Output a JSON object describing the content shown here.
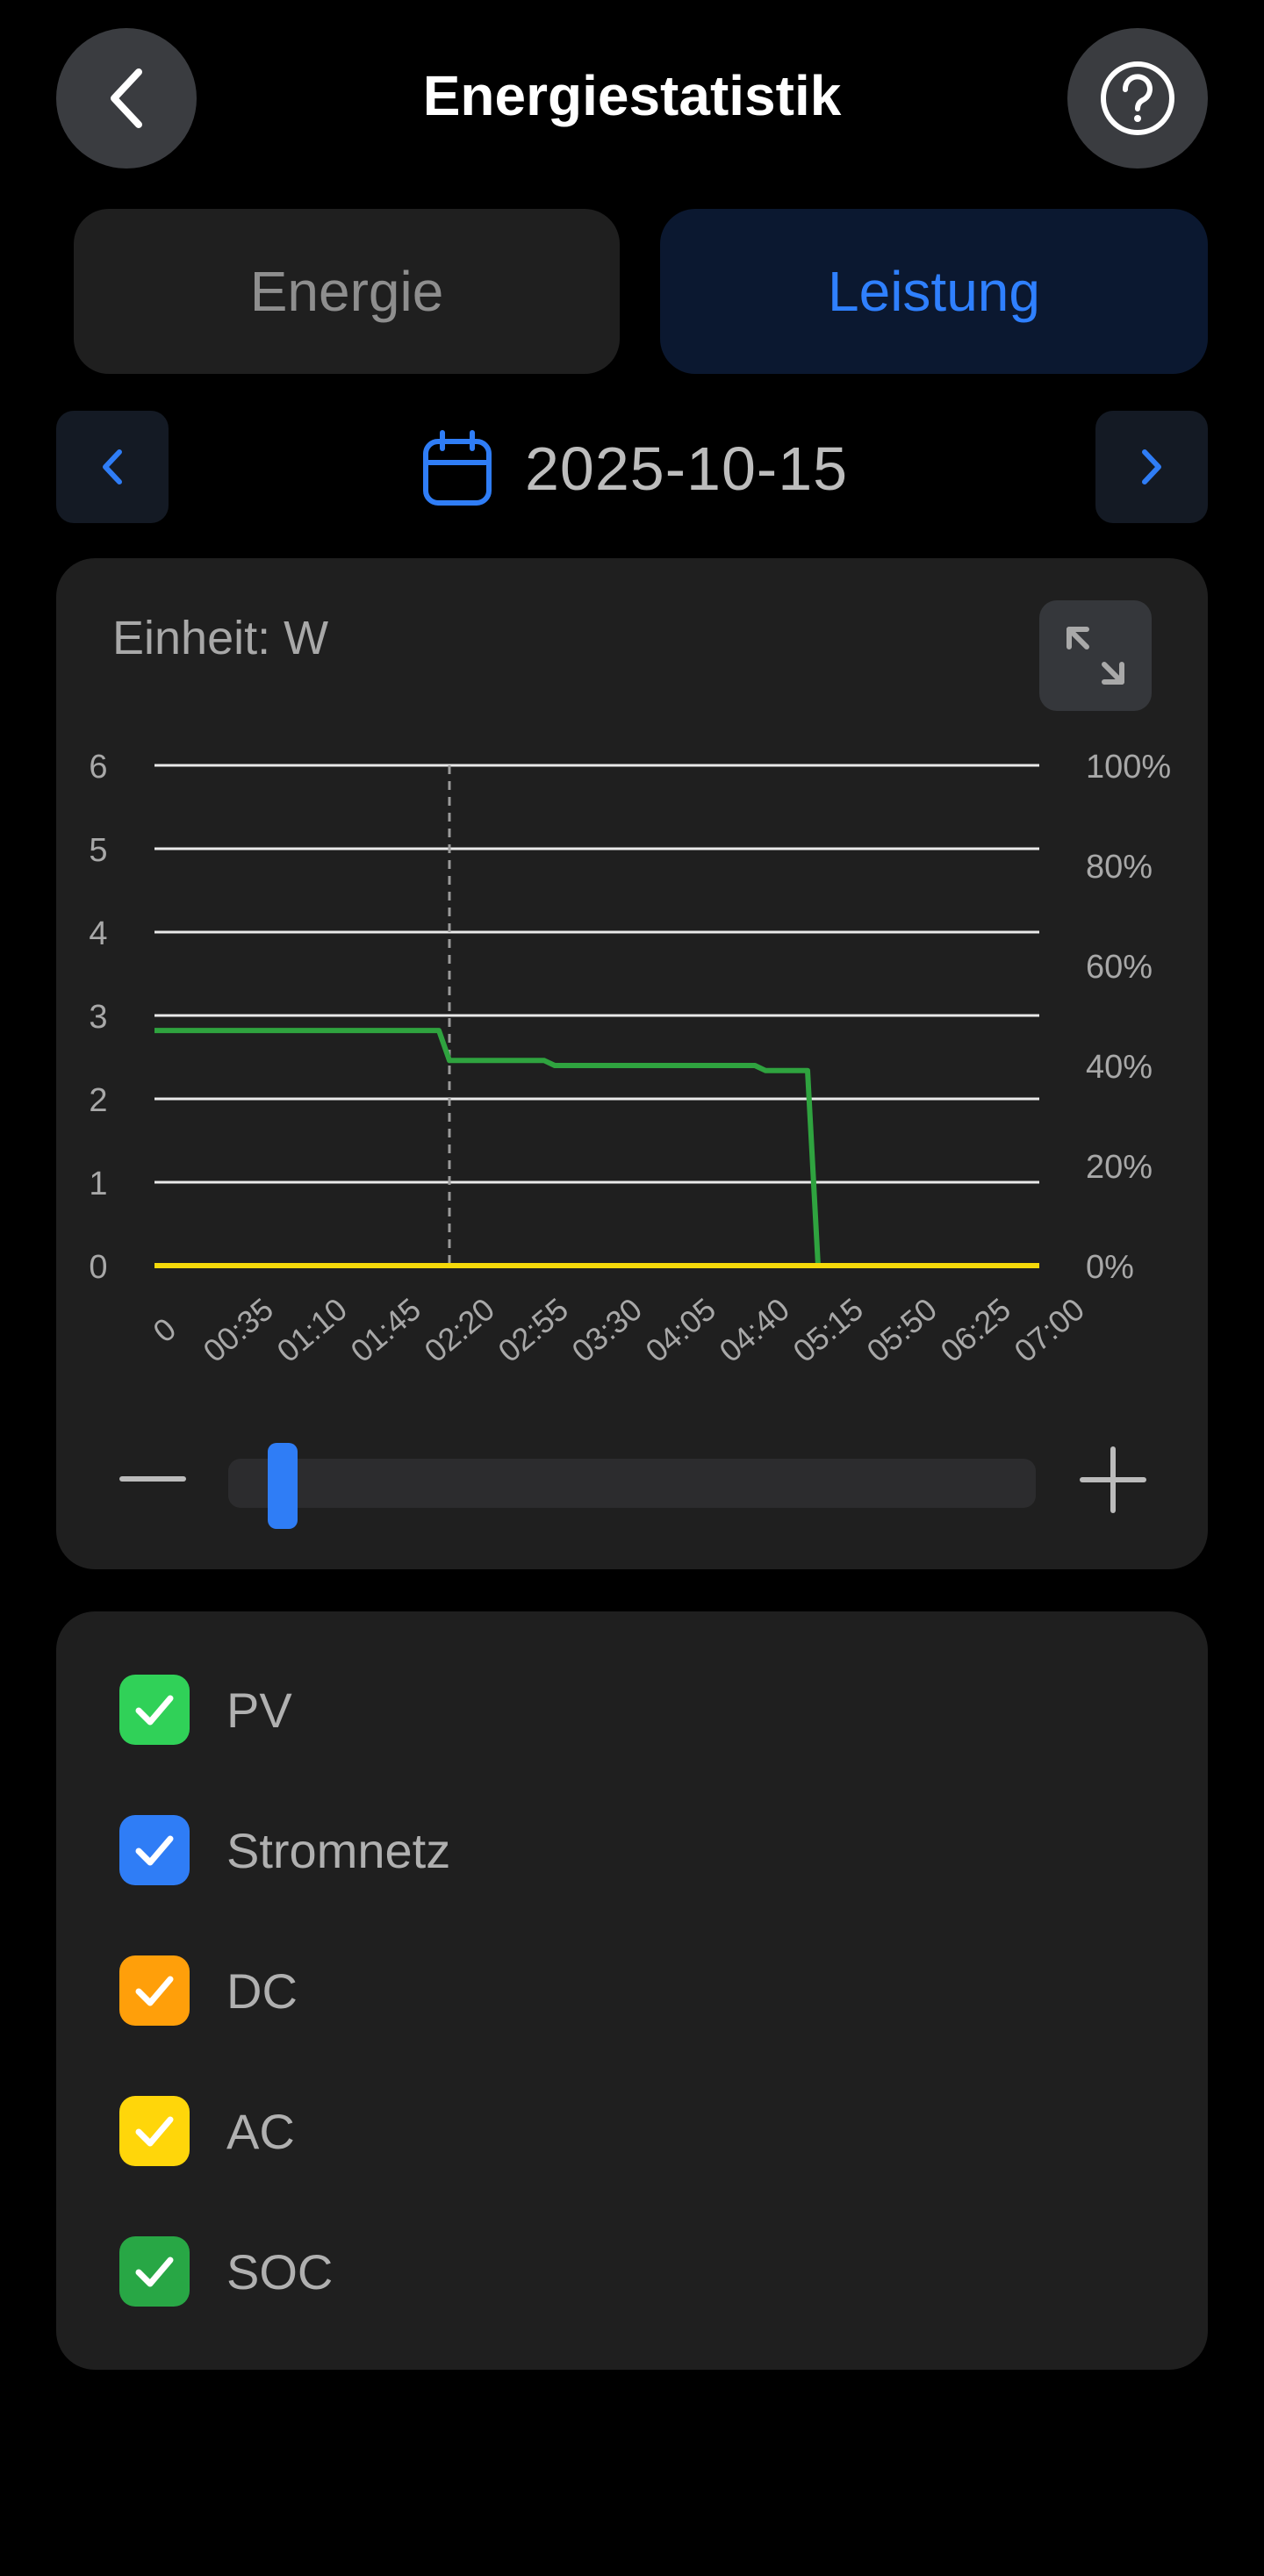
{
  "header": {
    "title": "Energiestatistik"
  },
  "tabs": [
    {
      "label": "Energie",
      "active": false
    },
    {
      "label": "Leistung",
      "active": true
    }
  ],
  "date": {
    "value": "2025-10-15"
  },
  "chart": {
    "unit_label": "Einheit: W",
    "left_ticks": [
      "6",
      "5",
      "4",
      "3",
      "2",
      "1",
      "0"
    ],
    "right_ticks": [
      "100%",
      "80%",
      "60%",
      "40%",
      "20%",
      "0%"
    ],
    "x_ticks": [
      "0",
      "00:35",
      "01:10",
      "01:45",
      "02:20",
      "02:55",
      "03:30",
      "04:05",
      "04:40",
      "05:15",
      "05:50",
      "06:25",
      "07:00"
    ],
    "zoom_slider_position": 0.04
  },
  "chart_data": {
    "type": "line",
    "ylabel_left": "",
    "ylabel_right": "",
    "ylim_left": [
      0,
      6
    ],
    "ylim_right": [
      0,
      100
    ],
    "grid": true,
    "cursor_time": "02:20",
    "series": [
      {
        "name": "SOC",
        "axis": "right",
        "color": "#2fa33f",
        "points": [
          [
            "00:00",
            47
          ],
          [
            "02:15",
            47
          ],
          [
            "02:20",
            41
          ],
          [
            "03:05",
            41
          ],
          [
            "03:10",
            40
          ],
          [
            "04:45",
            40
          ],
          [
            "04:50",
            39
          ],
          [
            "05:10",
            39
          ],
          [
            "05:15",
            0
          ],
          [
            "07:00",
            0
          ]
        ]
      },
      {
        "name": "AC",
        "axis": "left",
        "color": "#f5d90a",
        "points": [
          [
            "00:00",
            0
          ],
          [
            "07:00",
            0
          ]
        ]
      }
    ]
  },
  "legend": {
    "items": [
      {
        "label": "PV",
        "color": "#30d158",
        "checked": true
      },
      {
        "label": "Stromnetz",
        "color": "#2f7df6",
        "checked": true
      },
      {
        "label": "DC",
        "color": "#ff9f0a",
        "checked": true
      },
      {
        "label": "AC",
        "color": "#ffd60a",
        "checked": true
      },
      {
        "label": "SOC",
        "color": "#28a745",
        "checked": true
      }
    ]
  },
  "icons": {
    "back": "chevron-left-icon",
    "help": "question-circle-icon",
    "calendar": "calendar-icon",
    "expand": "expand-icon",
    "check": "check-icon"
  }
}
